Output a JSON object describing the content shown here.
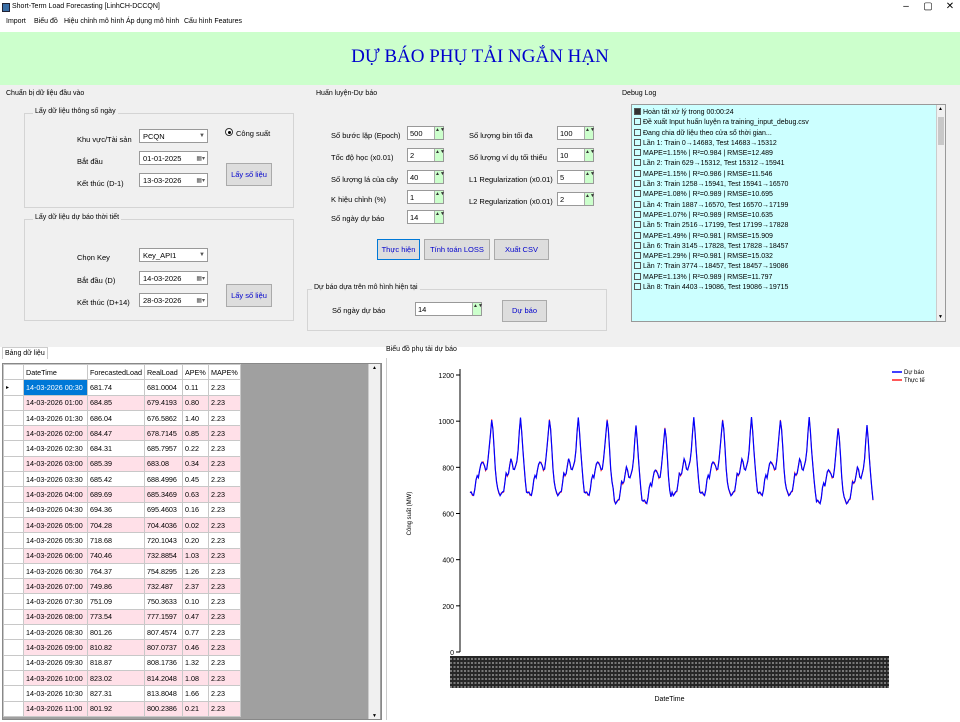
{
  "window": {
    "title": "Short-Term Load Forecasting [LinhCH-DCCQN]",
    "min": "–",
    "max": "▢",
    "close": "✕"
  },
  "menu": [
    "Import",
    "Biểu đồ",
    "Hiệu chỉnh mô hình",
    "Áp dụng mô hình",
    "Cấu hình Features"
  ],
  "banner": "DỰ BÁO PHỤ TẢI NGẮN HẠN",
  "prep": {
    "caption": "Chuẩn bị dữ liệu đầu vào",
    "daily": {
      "caption": "Lấy dữ liệu thông số ngày",
      "area_label": "Khu vực/Tài sản",
      "area_value": "PCQN",
      "start_label": "Bắt đầu",
      "start_value": "01-01-2025",
      "end_label": "Kết thúc (D-1)",
      "end_value": "13-03-2026",
      "radio_label": "Công suất",
      "fetch_label": "Lấy số liệu"
    },
    "weather": {
      "caption": "Lấy dữ liệu dự báo thời tiết",
      "key_label": "Chọn Key",
      "key_value": "Key_API1",
      "start_label": "Bắt đầu (D)",
      "start_value": "14-03-2026",
      "end_label": "Kết thúc (D+14)",
      "end_value": "28-03-2026",
      "fetch_label": "Lấy số liệu"
    }
  },
  "train": {
    "caption": "Huấn luyện-Dự báo",
    "params": [
      {
        "label": "Số bước lặp (Epoch)",
        "value": "500"
      },
      {
        "label": "Tốc độ học (x0.01)",
        "value": "2"
      },
      {
        "label": "Số lượng lá của cây",
        "value": "40"
      },
      {
        "label": "K hiệu chỉnh (%)",
        "value": "1"
      },
      {
        "label": "Số ngày dự báo",
        "value": "14"
      }
    ],
    "params2": [
      {
        "label": "Số lượng bin tối đa",
        "value": "100"
      },
      {
        "label": "Số lượng ví dụ tối thiểu",
        "value": "10"
      },
      {
        "label": "L1 Regularization (x0.01)",
        "value": "5"
      },
      {
        "label": "L2 Regularization (x0.01)",
        "value": "2"
      }
    ],
    "btn_run": "Thực hiện",
    "btn_loss": "Tính toán LOSS",
    "btn_csv": "Xuất CSV"
  },
  "forecast": {
    "caption": "Dự báo dựa trên mô hình hiện tại",
    "days_label": "Số ngày dự báo",
    "days_value": "14",
    "btn": "Dự báo"
  },
  "debug": {
    "caption": "Debug Log",
    "lines": [
      "Hoàn tất xử lý trong 00:00:24",
      "Đề xuất Input huấn luyện ra training_input_debug.csv",
      "Đang chia dữ liệu theo cửa sổ thời gian...",
      "Lần 1: Train 0→14683, Test 14683→15312",
      "MAPE=1.15% | R²=0.984 | RMSE=12.489",
      "Lần 2: Train 629→15312, Test 15312→15941",
      "MAPE=1.15% | R²=0.986 | RMSE=11.546",
      "Lần 3: Train 1258→15941, Test 15941→16570",
      "MAPE=1.08% | R²=0.989 | RMSE=10.695",
      "Lần 4: Train 1887→16570, Test 16570→17199",
      "MAPE=1.07% | R²=0.989 | RMSE=10.635",
      "Lần 5: Train 2516→17199, Test 17199→17828",
      "MAPE=1.49% | R²=0.981 | RMSE=15.909",
      "Lần 6: Train 3145→17828, Test 17828→18457",
      "MAPE=1.29% | R²=0.981 | RMSE=15.032",
      "Lần 7: Train 3774→18457, Test 18457→19086",
      "MAPE=1.13% | R²=0.989 | RMSE=11.797",
      "Lần 8: Train 4403→19086, Test 19086→19715"
    ]
  },
  "table": {
    "caption": "Bảng dữ liệu",
    "columns": [
      "DateTime",
      "ForecastedLoad",
      "RealLoad",
      "APE%",
      "MAPE%"
    ],
    "rows": [
      [
        "14-03-2026 00:30",
        "681.74",
        "681.0004",
        "0.11",
        "2.23"
      ],
      [
        "14-03-2026 01:00",
        "684.85",
        "679.4193",
        "0.80",
        "2.23"
      ],
      [
        "14-03-2026 01:30",
        "686.04",
        "676.5862",
        "1.40",
        "2.23"
      ],
      [
        "14-03-2026 02:00",
        "684.47",
        "678.7145",
        "0.85",
        "2.23"
      ],
      [
        "14-03-2026 02:30",
        "684.31",
        "685.7957",
        "0.22",
        "2.23"
      ],
      [
        "14-03-2026 03:00",
        "685.39",
        "683.08",
        "0.34",
        "2.23"
      ],
      [
        "14-03-2026 03:30",
        "685.42",
        "688.4996",
        "0.45",
        "2.23"
      ],
      [
        "14-03-2026 04:00",
        "689.69",
        "685.3469",
        "0.63",
        "2.23"
      ],
      [
        "14-03-2026 04:30",
        "694.36",
        "695.4603",
        "0.16",
        "2.23"
      ],
      [
        "14-03-2026 05:00",
        "704.28",
        "704.4036",
        "0.02",
        "2.23"
      ],
      [
        "14-03-2026 05:30",
        "718.68",
        "720.1043",
        "0.20",
        "2.23"
      ],
      [
        "14-03-2026 06:00",
        "740.46",
        "732.8854",
        "1.03",
        "2.23"
      ],
      [
        "14-03-2026 06:30",
        "764.37",
        "754.8295",
        "1.26",
        "2.23"
      ],
      [
        "14-03-2026 07:00",
        "749.86",
        "732.487",
        "2.37",
        "2.23"
      ],
      [
        "14-03-2026 07:30",
        "751.09",
        "750.3633",
        "0.10",
        "2.23"
      ],
      [
        "14-03-2026 08:00",
        "773.54",
        "777.1597",
        "0.47",
        "2.23"
      ],
      [
        "14-03-2026 08:30",
        "801.26",
        "807.4574",
        "0.77",
        "2.23"
      ],
      [
        "14-03-2026 09:00",
        "810.82",
        "807.0737",
        "0.46",
        "2.23"
      ],
      [
        "14-03-2026 09:30",
        "818.87",
        "808.1736",
        "1.32",
        "2.23"
      ],
      [
        "14-03-2026 10:00",
        "823.02",
        "814.2048",
        "1.08",
        "2.23"
      ],
      [
        "14-03-2026 10:30",
        "827.31",
        "813.8048",
        "1.66",
        "2.23"
      ],
      [
        "14-03-2026 11:00",
        "801.92",
        "800.2386",
        "0.21",
        "2.23"
      ]
    ]
  },
  "chart_caption": "Biểu đồ phụ tải dự báo",
  "chart_data": {
    "type": "line",
    "xlabel": "DateTime",
    "ylabel": "Công suất (MW)",
    "ylim": [
      0,
      1200
    ],
    "yticks": [
      0,
      200,
      400,
      600,
      800,
      1000,
      1200
    ],
    "days": 14,
    "legend": "top-right",
    "series": [
      {
        "name": "Dự báo",
        "color": "#0000ff"
      },
      {
        "name": "Thực tế",
        "color": "#ff2020"
      }
    ],
    "daily_profile": [
      690,
      685,
      684,
      686,
      700,
      740,
      770,
      760,
      780,
      810,
      830,
      820,
      800,
      790,
      800,
      830,
      880,
      950,
      1010,
      960,
      880,
      800,
      740,
      700
    ]
  }
}
